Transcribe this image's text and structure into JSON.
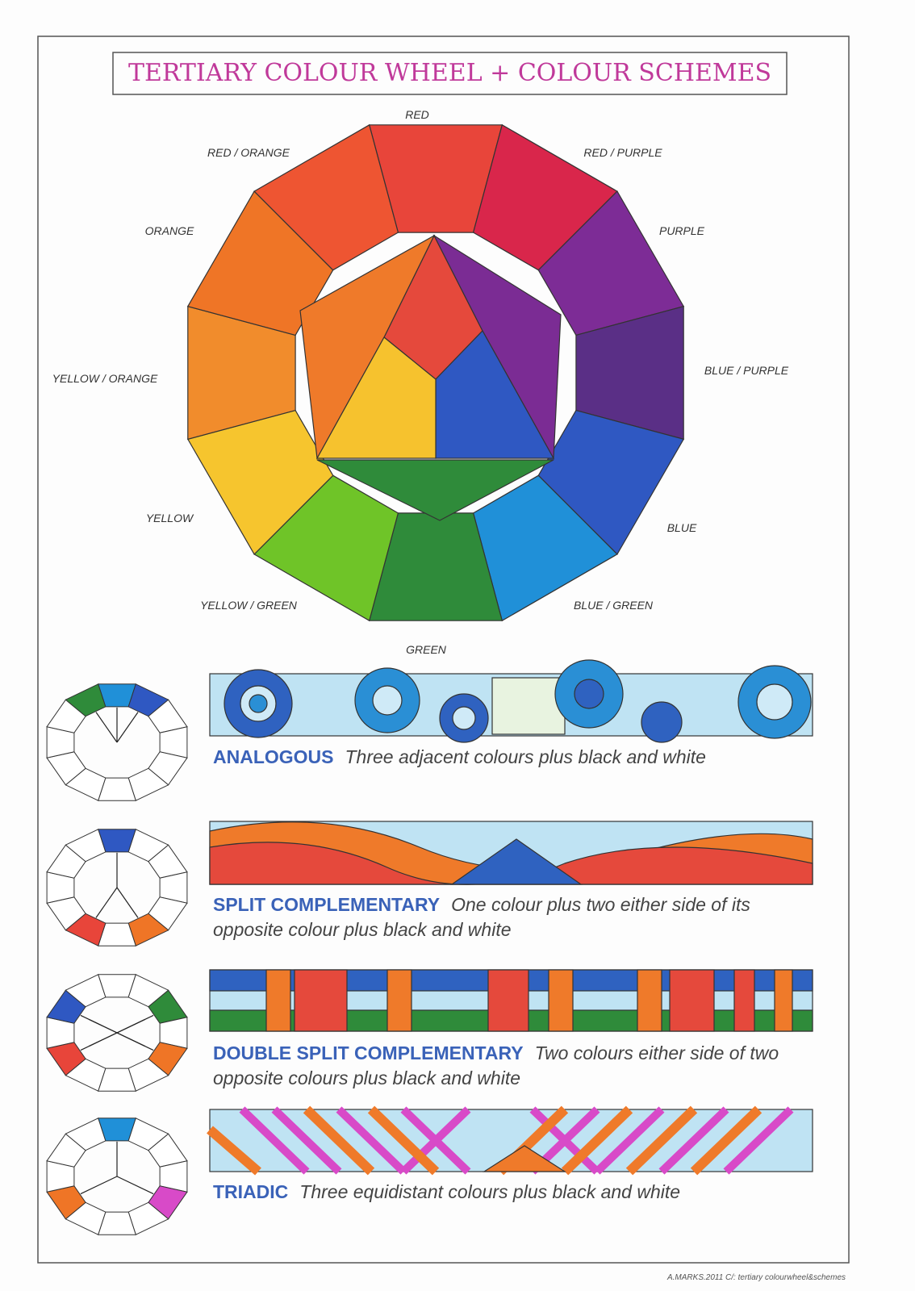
{
  "title": "TERTIARY COLOUR WHEEL + COLOUR SCHEMES",
  "wheel": [
    {
      "label": "RED",
      "color": "#e8453a"
    },
    {
      "label": "RED / PURPLE",
      "color": "#d9264b"
    },
    {
      "label": "PURPLE",
      "color": "#7d2c96"
    },
    {
      "label": "BLUE / PURPLE",
      "color": "#5a2f86"
    },
    {
      "label": "BLUE",
      "color": "#2f58c2"
    },
    {
      "label": "BLUE / GREEN",
      "color": "#2090d8"
    },
    {
      "label": "GREEN",
      "color": "#2f8b3a"
    },
    {
      "label": "YELLOW / GREEN",
      "color": "#6fc428"
    },
    {
      "label": "YELLOW",
      "color": "#f6c52e"
    },
    {
      "label": "YELLOW / ORANGE",
      "color": "#f18c2c"
    },
    {
      "label": "ORANGE",
      "color": "#ef7526"
    },
    {
      "label": "RED / ORANGE",
      "color": "#ee5532"
    }
  ],
  "schemes": [
    {
      "name": "ANALOGOUS",
      "description": "Three adjacent colours plus black and white"
    },
    {
      "name": "SPLIT COMPLEMENTARY",
      "description": "One colour plus two either side of its opposite colour plus black and white"
    },
    {
      "name": "DOUBLE SPLIT COMPLEMENTARY",
      "description": "Two colours either side of two opposite colours plus black and white"
    },
    {
      "name": "TRIADIC",
      "description": "Three equidistant colours plus black and white"
    }
  ],
  "footer": "A.MARKS.2011 C/: tertiary colourwheel&schemes"
}
